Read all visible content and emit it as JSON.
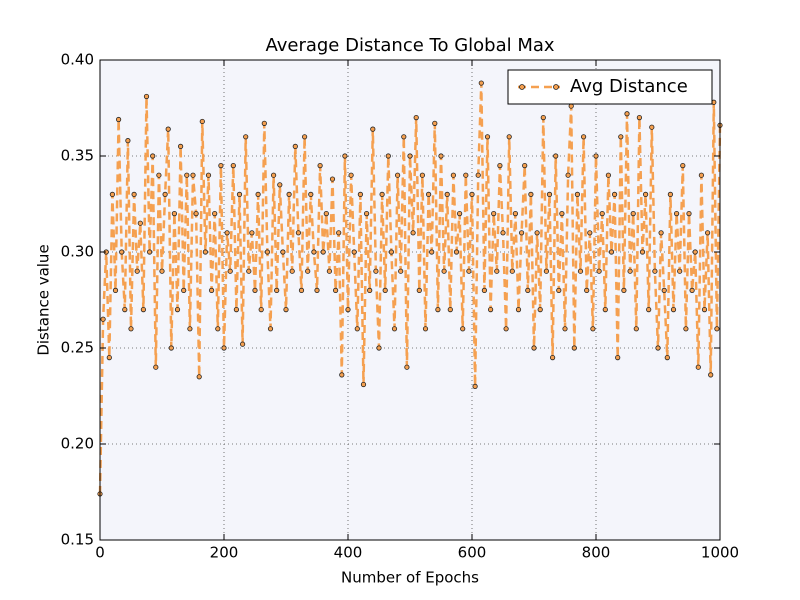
{
  "chart_data": {
    "type": "line",
    "title": "Average Distance To Global Max",
    "x_label": "Number of Epochs",
    "y_label": "Distance value",
    "xlim": [
      0,
      1000
    ],
    "xticks": [
      0,
      200,
      400,
      600,
      800,
      1000
    ],
    "ylim": [
      0.15,
      0.4
    ],
    "yticks": [
      0.15,
      {
        "value": 0.2,
        "label": "0.20"
      },
      0.25,
      {
        "value": 0.3,
        "label": "0.30"
      },
      0.35,
      {
        "value": 0.4,
        "label": "0.40"
      }
    ],
    "grid": true,
    "legend": "upper right",
    "x": [
      0,
      5,
      10,
      15,
      20,
      25,
      30,
      35,
      40,
      45,
      50,
      55,
      60,
      65,
      70,
      75,
      80,
      85,
      90,
      95,
      100,
      105,
      110,
      115,
      120,
      125,
      130,
      135,
      140,
      145,
      150,
      155,
      160,
      165,
      170,
      175,
      180,
      185,
      190,
      195,
      200,
      205,
      210,
      215,
      220,
      225,
      230,
      235,
      240,
      245,
      250,
      255,
      260,
      265,
      270,
      275,
      280,
      285,
      290,
      295,
      300,
      305,
      310,
      315,
      320,
      325,
      330,
      335,
      340,
      345,
      350,
      355,
      360,
      365,
      370,
      375,
      380,
      385,
      390,
      395,
      400,
      405,
      410,
      415,
      420,
      425,
      430,
      435,
      440,
      445,
      450,
      455,
      460,
      465,
      470,
      475,
      480,
      485,
      490,
      495,
      500,
      505,
      510,
      515,
      520,
      525,
      530,
      535,
      540,
      545,
      550,
      555,
      560,
      565,
      570,
      575,
      580,
      585,
      590,
      595,
      600,
      605,
      610,
      615,
      620,
      625,
      630,
      635,
      640,
      645,
      650,
      655,
      660,
      665,
      670,
      675,
      680,
      685,
      690,
      695,
      700,
      705,
      710,
      715,
      720,
      725,
      730,
      735,
      740,
      745,
      750,
      755,
      760,
      765,
      770,
      775,
      780,
      785,
      790,
      795,
      800,
      805,
      810,
      815,
      820,
      825,
      830,
      835,
      840,
      845,
      850,
      855,
      860,
      865,
      870,
      875,
      880,
      885,
      890,
      895,
      900,
      905,
      910,
      915,
      920,
      925,
      930,
      935,
      940,
      945,
      950,
      955,
      960,
      965,
      970,
      975,
      980,
      985,
      990,
      995,
      1000
    ],
    "series": [
      {
        "name": "Avg Distance",
        "color": "#f5a050",
        "values": [
          0.174,
          0.265,
          0.3,
          0.245,
          0.33,
          0.28,
          0.369,
          0.3,
          0.27,
          0.358,
          0.26,
          0.33,
          0.29,
          0.315,
          0.27,
          0.381,
          0.3,
          0.35,
          0.24,
          0.34,
          0.29,
          0.33,
          0.364,
          0.25,
          0.32,
          0.27,
          0.355,
          0.28,
          0.34,
          0.26,
          0.34,
          0.32,
          0.235,
          0.368,
          0.3,
          0.34,
          0.28,
          0.32,
          0.26,
          0.345,
          0.25,
          0.31,
          0.29,
          0.345,
          0.27,
          0.33,
          0.252,
          0.36,
          0.29,
          0.31,
          0.28,
          0.33,
          0.27,
          0.367,
          0.3,
          0.26,
          0.34,
          0.28,
          0.335,
          0.3,
          0.27,
          0.33,
          0.29,
          0.355,
          0.31,
          0.28,
          0.36,
          0.29,
          0.33,
          0.3,
          0.28,
          0.345,
          0.3,
          0.32,
          0.29,
          0.338,
          0.28,
          0.31,
          0.236,
          0.35,
          0.27,
          0.34,
          0.3,
          0.26,
          0.33,
          0.231,
          0.32,
          0.28,
          0.364,
          0.29,
          0.25,
          0.33,
          0.28,
          0.35,
          0.3,
          0.26,
          0.34,
          0.29,
          0.36,
          0.24,
          0.35,
          0.31,
          0.37,
          0.28,
          0.34,
          0.26,
          0.33,
          0.3,
          0.367,
          0.27,
          0.35,
          0.29,
          0.33,
          0.27,
          0.34,
          0.3,
          0.32,
          0.26,
          0.34,
          0.29,
          0.33,
          0.23,
          0.34,
          0.388,
          0.28,
          0.36,
          0.27,
          0.32,
          0.29,
          0.345,
          0.31,
          0.26,
          0.36,
          0.29,
          0.32,
          0.27,
          0.31,
          0.345,
          0.28,
          0.33,
          0.25,
          0.31,
          0.27,
          0.37,
          0.29,
          0.33,
          0.245,
          0.35,
          0.28,
          0.32,
          0.26,
          0.34,
          0.376,
          0.25,
          0.33,
          0.29,
          0.36,
          0.28,
          0.31,
          0.26,
          0.35,
          0.29,
          0.32,
          0.27,
          0.34,
          0.3,
          0.33,
          0.245,
          0.36,
          0.28,
          0.372,
          0.29,
          0.32,
          0.26,
          0.37,
          0.3,
          0.33,
          0.27,
          0.365,
          0.29,
          0.25,
          0.31,
          0.28,
          0.245,
          0.33,
          0.27,
          0.32,
          0.29,
          0.345,
          0.26,
          0.32,
          0.28,
          0.3,
          0.24,
          0.34,
          0.27,
          0.31,
          0.236,
          0.378,
          0.26,
          0.366
        ]
      }
    ]
  }
}
